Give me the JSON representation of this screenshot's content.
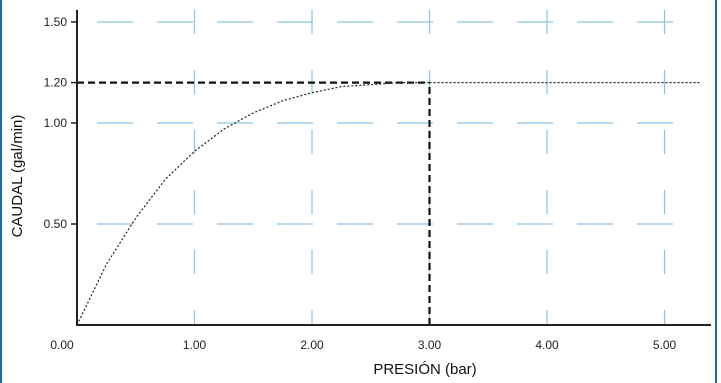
{
  "chart_data": {
    "type": "line",
    "title": "",
    "xlabel": "PRESIÓN (bar)",
    "ylabel": "CAUDAL (gal/min)",
    "xlim": [
      0,
      5.3
    ],
    "ylim": [
      0,
      1.5
    ],
    "x_ticks": [
      0.0,
      1.0,
      2.0,
      3.0,
      4.0,
      5.0
    ],
    "x_tick_labels": [
      "0.00",
      "1.00",
      "2.00",
      "3.00",
      "4.00",
      "5.00"
    ],
    "y_ticks": [
      0.5,
      1.0,
      1.2,
      1.5
    ],
    "y_tick_labels": [
      "0.50",
      "1.00",
      "1.20",
      "1.50"
    ],
    "grid": true,
    "grid_color": "#8ec3e0",
    "axis_color": "#222222",
    "series": [
      {
        "style": "dotted",
        "x": [
          0.0,
          0.25,
          0.5,
          0.75,
          1.0,
          1.25,
          1.5,
          1.75,
          2.0,
          2.25,
          2.5,
          2.75,
          3.0
        ],
        "y": [
          0.0,
          0.3,
          0.53,
          0.72,
          0.86,
          0.97,
          1.05,
          1.11,
          1.15,
          1.18,
          1.19,
          1.2,
          1.2
        ]
      },
      {
        "style": "dotted",
        "x": [
          3.0,
          5.3
        ],
        "y": [
          1.2,
          1.2
        ]
      }
    ],
    "reference_lines": [
      {
        "style": "dashed",
        "x": [
          0.0,
          3.0
        ],
        "y": [
          1.2,
          1.2
        ]
      },
      {
        "style": "dashed",
        "x": [
          3.0,
          3.0
        ],
        "y": [
          0.0,
          1.2
        ]
      }
    ]
  }
}
